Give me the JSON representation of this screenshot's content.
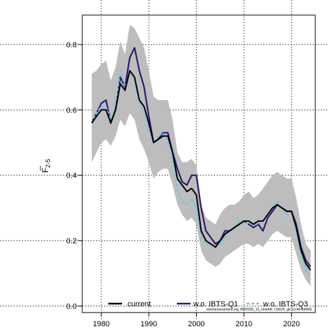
{
  "chart_data": {
    "type": "line",
    "ylabel": "F̄2-5",
    "ylabel_main": "F",
    "ylabel_sub": "2-5",
    "xlim": [
      1976,
      2025
    ],
    "ylim": [
      -0.02,
      0.89
    ],
    "x_ticks": [
      1980,
      1990,
      2000,
      2010,
      2020
    ],
    "y_ticks": [
      0.0,
      0.2,
      0.4,
      0.6,
      0.8
    ],
    "y_tick_labels": [
      "0.0",
      "0.2",
      "0.4",
      "0.6",
      "0.8"
    ],
    "grid": true,
    "legend_position": "bottom",
    "footnote": "stockassessment.org, BW2026_12_newAR, r19625, git 1cc464b8066",
    "x": [
      1978,
      1979,
      1980,
      1981,
      1982,
      1983,
      1984,
      1985,
      1986,
      1987,
      1988,
      1989,
      1990,
      1991,
      1992,
      1993,
      1994,
      1995,
      1996,
      1997,
      1998,
      1999,
      2000,
      2001,
      2002,
      2003,
      2004,
      2005,
      2006,
      2007,
      2008,
      2009,
      2010,
      2011,
      2012,
      2013,
      2014,
      2015,
      2016,
      2017,
      2018,
      2019,
      2020,
      2021,
      2022,
      2023,
      2024
    ],
    "band": {
      "name": "confidence band",
      "lower": [
        0.44,
        0.47,
        0.5,
        0.51,
        0.49,
        0.52,
        0.57,
        0.55,
        0.59,
        0.57,
        0.51,
        0.48,
        0.44,
        0.39,
        0.41,
        0.42,
        0.42,
        0.37,
        0.31,
        0.28,
        0.26,
        0.27,
        0.25,
        0.17,
        0.14,
        0.13,
        0.12,
        0.13,
        0.15,
        0.16,
        0.17,
        0.18,
        0.19,
        0.19,
        0.18,
        0.19,
        0.18,
        0.2,
        0.22,
        0.23,
        0.22,
        0.21,
        0.21,
        0.16,
        0.11,
        0.08,
        0.06
      ],
      "upper": [
        0.71,
        0.72,
        0.74,
        0.75,
        0.69,
        0.73,
        0.81,
        0.77,
        0.86,
        0.85,
        0.82,
        0.79,
        0.72,
        0.64,
        0.63,
        0.63,
        0.63,
        0.57,
        0.47,
        0.44,
        0.44,
        0.45,
        0.43,
        0.31,
        0.27,
        0.26,
        0.25,
        0.28,
        0.3,
        0.31,
        0.31,
        0.32,
        0.34,
        0.35,
        0.33,
        0.34,
        0.36,
        0.38,
        0.4,
        0.41,
        0.4,
        0.39,
        0.39,
        0.33,
        0.25,
        0.19,
        0.17
      ]
    },
    "series": [
      {
        "name": "current",
        "color": "#000000",
        "dash": "solid",
        "values": [
          0.56,
          0.58,
          0.6,
          0.6,
          0.56,
          0.6,
          0.68,
          0.66,
          0.72,
          0.7,
          0.63,
          0.61,
          0.56,
          0.5,
          0.51,
          0.52,
          0.52,
          0.47,
          0.39,
          0.37,
          0.35,
          0.36,
          0.34,
          0.23,
          0.2,
          0.19,
          0.18,
          0.2,
          0.22,
          0.23,
          0.24,
          0.25,
          0.26,
          0.26,
          0.25,
          0.26,
          0.26,
          0.28,
          0.3,
          0.31,
          0.3,
          0.29,
          0.29,
          0.24,
          0.17,
          0.13,
          0.11
        ]
      },
      {
        "name": "w.o. IBTS-Q1",
        "color": "#2b1a70",
        "dash": "solid",
        "values": [
          0.56,
          0.59,
          0.62,
          0.63,
          0.56,
          0.6,
          0.7,
          0.67,
          0.76,
          0.79,
          0.72,
          0.67,
          0.58,
          0.5,
          0.51,
          0.53,
          0.53,
          0.47,
          0.42,
          0.38,
          0.37,
          0.4,
          0.4,
          0.3,
          0.23,
          0.21,
          0.19,
          0.2,
          0.23,
          0.23,
          0.24,
          0.25,
          0.26,
          0.25,
          0.24,
          0.25,
          0.23,
          0.27,
          0.29,
          0.31,
          0.3,
          0.29,
          0.29,
          0.25,
          0.18,
          0.14,
          0.12
        ]
      },
      {
        "name": "w.o. IBTS-Q3",
        "color": "#66c8e8",
        "dash": "dashed",
        "values": [
          0.56,
          0.59,
          0.61,
          0.61,
          0.57,
          0.61,
          0.72,
          0.67,
          0.71,
          0.69,
          0.62,
          0.59,
          0.54,
          0.5,
          0.52,
          0.53,
          0.5,
          0.45,
          0.36,
          0.32,
          0.31,
          0.33,
          0.3,
          0.21,
          0.19,
          0.19,
          0.18,
          0.19,
          0.21,
          0.23,
          0.24,
          0.26,
          0.26,
          0.25,
          0.25,
          0.25,
          0.26,
          0.28,
          0.3,
          0.32,
          0.3,
          0.28,
          0.29,
          0.23,
          0.16,
          0.11,
          0.09
        ]
      }
    ]
  }
}
